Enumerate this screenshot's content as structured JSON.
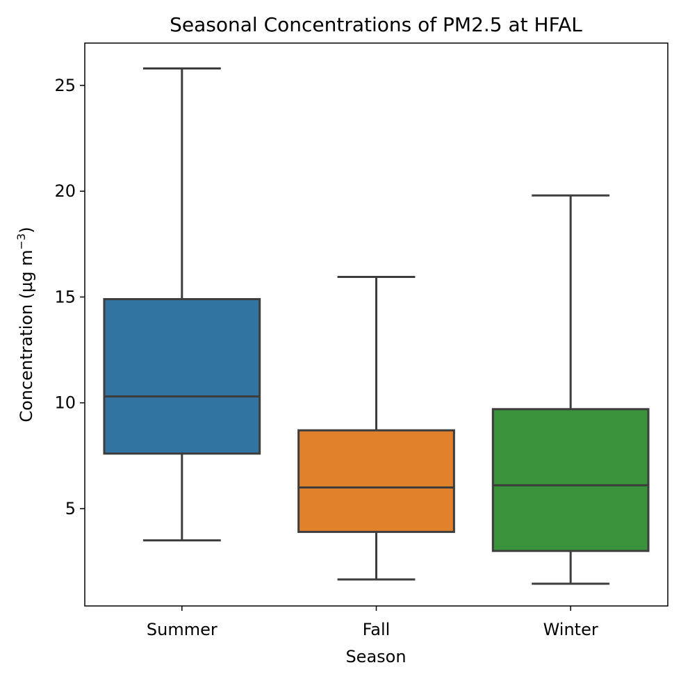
{
  "chart_data": {
    "type": "box",
    "title": "Seasonal Concentrations of PM2.5 at HFAL",
    "xlabel": "Season",
    "ylabel": "Concentration (µg m",
    "ylabel_sup": "−3",
    "ylabel_end": ")",
    "ylim": [
      0.4,
      27.0
    ],
    "yticks": [
      5,
      10,
      15,
      20,
      25
    ],
    "grid": false,
    "categories": [
      "Summer",
      "Fall",
      "Winter"
    ],
    "boxes": [
      {
        "name": "Summer",
        "whisker_low": 3.5,
        "q1": 7.6,
        "median": 10.3,
        "q3": 14.9,
        "whisker_high": 25.8,
        "color": "#3274a1"
      },
      {
        "name": "Fall",
        "whisker_low": 1.65,
        "q1": 3.9,
        "median": 6.0,
        "q3": 8.7,
        "whisker_high": 15.95,
        "color": "#e1812c"
      },
      {
        "name": "Winter",
        "whisker_low": 1.45,
        "q1": 3.0,
        "median": 6.1,
        "q3": 9.7,
        "whisker_high": 19.8,
        "color": "#3a923a"
      }
    ],
    "line_color": "#3d3d3d"
  }
}
